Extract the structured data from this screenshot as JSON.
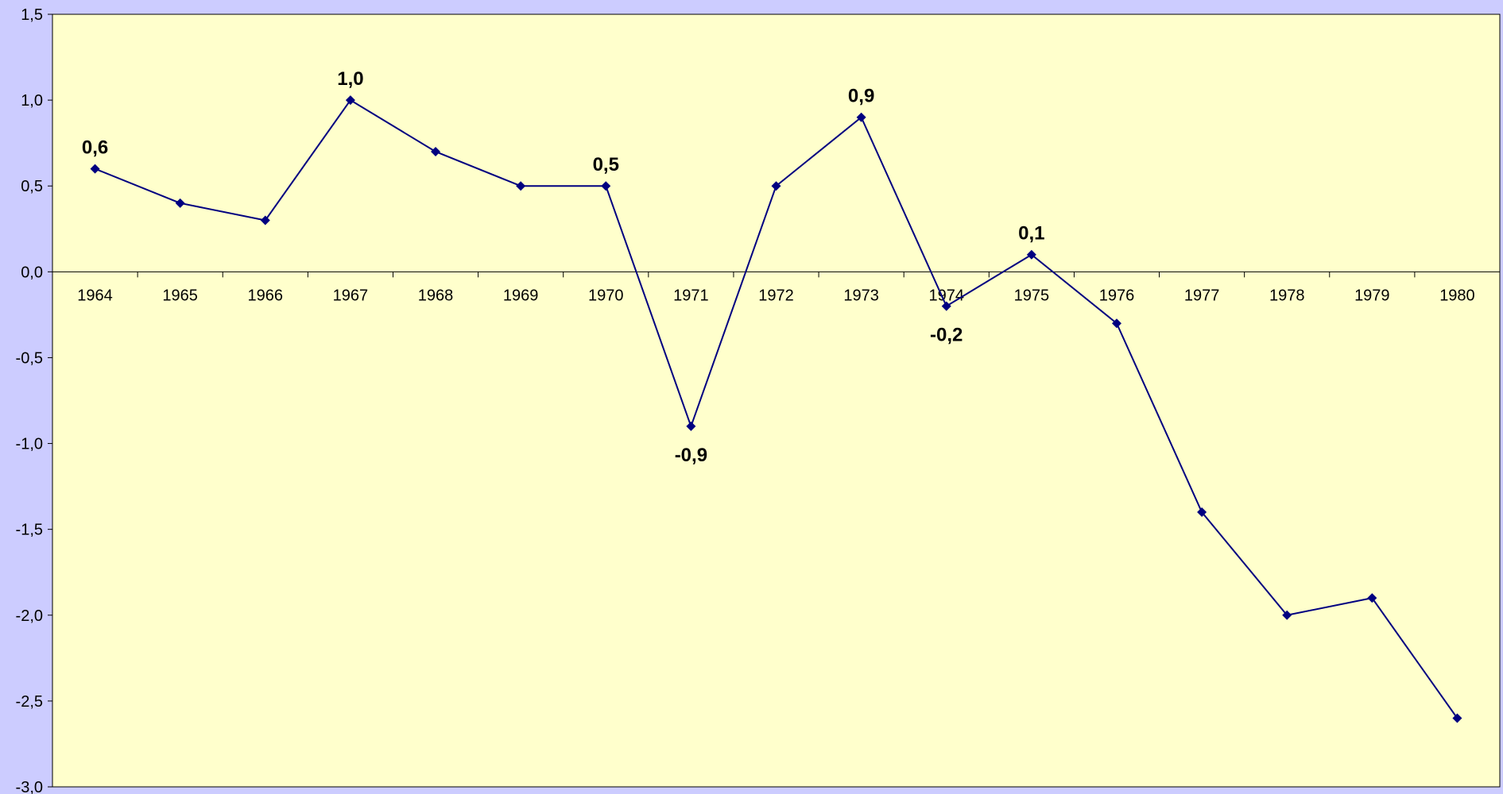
{
  "colors": {
    "outer_background": "#CCCCFF",
    "plot_background": "#FFFFCC",
    "series_line": "#000080",
    "axis": "#000000"
  },
  "chart_data": {
    "type": "line",
    "title": "",
    "xlabel": "",
    "ylabel": "",
    "categories": [
      "1964",
      "1965",
      "1966",
      "1967",
      "1968",
      "1969",
      "1970",
      "1971",
      "1972",
      "1973",
      "1974",
      "1975",
      "1976",
      "1977",
      "1978",
      "1979",
      "1980"
    ],
    "series": [
      {
        "values": [
          0.6,
          0.4,
          0.3,
          1.0,
          0.7,
          0.5,
          0.5,
          -0.9,
          0.5,
          0.9,
          -0.2,
          0.1,
          -0.3,
          -1.4,
          -2.0,
          -1.9,
          -2.6
        ],
        "marker": "diamond"
      }
    ],
    "ylim": [
      -3.0,
      1.5
    ],
    "y_ticks": [
      1.5,
      1.0,
      0.5,
      0.0,
      -0.5,
      -1.0,
      -1.5,
      -2.0,
      -2.5,
      -3.0
    ],
    "y_tick_labels": [
      "1,5",
      "1,0",
      "0,5",
      "0,0",
      "-0,5",
      "-1,0",
      "-1,5",
      "-2,0",
      "-2,5",
      "-3,0"
    ],
    "data_labels": [
      {
        "category": "1964",
        "text": "0,6",
        "position": "above"
      },
      {
        "category": "1967",
        "text": "1,0",
        "position": "above"
      },
      {
        "category": "1970",
        "text": "0,5",
        "position": "above"
      },
      {
        "category": "1971",
        "text": "-0,9",
        "position": "below"
      },
      {
        "category": "1973",
        "text": "0,9",
        "position": "above"
      },
      {
        "category": "1974",
        "text": "-0,2",
        "position": "below"
      },
      {
        "category": "1975",
        "text": "0,1",
        "position": "above"
      }
    ],
    "grid": false,
    "legend": "none"
  }
}
